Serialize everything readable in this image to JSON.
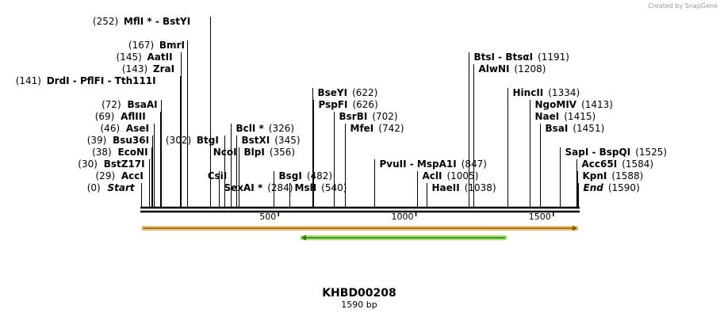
{
  "credit": "Created by SnapGene",
  "title": "KHBD00208",
  "subtitle": "1590 bp",
  "sequence_length": 1590,
  "axis_ticks": [
    {
      "label": "500",
      "value": 500
    },
    {
      "label": "1000",
      "value": 1000
    },
    {
      "label": "1500",
      "value": 1500
    }
  ],
  "colors": {
    "backbone": "#000000",
    "feature_orange_fill": "#f3c078",
    "feature_orange_line": "#8a5a00",
    "feature_green_fill": "#9be36a",
    "feature_green_line": "#2d7a00"
  },
  "features": [
    {
      "name": "orange-feature",
      "start": 1,
      "end": 1590,
      "strand": "forward"
    },
    {
      "name": "green-feature",
      "start": 580,
      "end": 1330,
      "strand": "reverse"
    }
  ],
  "sites": [
    {
      "id": "start",
      "pos": "(0)",
      "name": "Start",
      "site": 0,
      "italic": true,
      "side": "left",
      "level": 0
    },
    {
      "id": "acci",
      "pos": "(29)",
      "name": "AccI",
      "site": 29,
      "side": "left",
      "level": 1
    },
    {
      "id": "bstz17i",
      "pos": "(30)",
      "name": "BstZ17I",
      "site": 30,
      "side": "left",
      "level": 2
    },
    {
      "id": "econi",
      "pos": "(38)",
      "name": "EcoNI",
      "site": 38,
      "side": "left",
      "level": 3
    },
    {
      "id": "bsu36i",
      "pos": "(39)",
      "name": "Bsu36I",
      "site": 39,
      "side": "left",
      "level": 4
    },
    {
      "id": "asei",
      "pos": "(46)",
      "name": "AseI",
      "site": 46,
      "side": "left",
      "level": 5
    },
    {
      "id": "afliii",
      "pos": "(69)",
      "name": "AflIII",
      "site": 69,
      "side": "left",
      "level": 6
    },
    {
      "id": "bsaai",
      "pos": "(72)",
      "name": "BsaAI",
      "site": 72,
      "side": "left",
      "level": 7
    },
    {
      "id": "drdi",
      "pos": "(141)",
      "name": "DrdI - PflFI - Tth111I",
      "site": 141,
      "side": "left",
      "level": 9
    },
    {
      "id": "zrai",
      "pos": "(143)",
      "name": "ZraI",
      "site": 143,
      "side": "left",
      "level": 10
    },
    {
      "id": "aatii",
      "pos": "(145)",
      "name": "AatII",
      "site": 145,
      "side": "left",
      "level": 11
    },
    {
      "id": "bmri",
      "pos": "(167)",
      "name": "BmrI",
      "site": 167,
      "side": "left",
      "level": 12
    },
    {
      "id": "mfli",
      "pos": "(252)",
      "name": "MflI * - BstYI",
      "site": 252,
      "side": "left",
      "level": 14
    },
    {
      "id": "sexai",
      "pos": "(284)",
      "name": "SexAI *",
      "site": 284,
      "side": "right",
      "level": 0
    },
    {
      "id": "csii",
      "pos": "",
      "name": "CsiI",
      "site": 284,
      "side": "none",
      "level": 1
    },
    {
      "id": "ncoi",
      "pos": "",
      "name": "NcoI",
      "site": 302,
      "side": "none",
      "level": 3
    },
    {
      "id": "btgi",
      "pos": "(302)",
      "name": "BtgI",
      "site": 302,
      "side": "left",
      "level": 4
    },
    {
      "id": "blpi",
      "pos": "(356)",
      "name": "BlpI",
      "site": 356,
      "side": "right",
      "level": 3
    },
    {
      "id": "bstxi",
      "pos": "(345)",
      "name": "BstXI",
      "site": 345,
      "side": "right",
      "level": 4
    },
    {
      "id": "bcli",
      "pos": "(326)",
      "name": "BclI *",
      "site": 326,
      "side": "right",
      "level": 5
    },
    {
      "id": "bsgi",
      "pos": "(482)",
      "name": "BsgI",
      "site": 482,
      "side": "right",
      "level": 1
    },
    {
      "id": "msli",
      "pos": "(540)",
      "name": "MslI",
      "site": 540,
      "side": "right",
      "level": 0
    },
    {
      "id": "pspfi",
      "pos": "(626)",
      "name": "PspFI",
      "site": 626,
      "side": "right",
      "level": 7
    },
    {
      "id": "bseyi",
      "pos": "(622)",
      "name": "BseYI",
      "site": 622,
      "side": "right",
      "level": 8
    },
    {
      "id": "mfei",
      "pos": "(742)",
      "name": "MfeI",
      "site": 742,
      "side": "right",
      "level": 5
    },
    {
      "id": "bsrbi",
      "pos": "(702)",
      "name": "BsrBI",
      "site": 702,
      "side": "right",
      "level": 6
    },
    {
      "id": "pvuii",
      "pos": "(847)",
      "name": "PvuII - MspA1I",
      "site": 847,
      "side": "right",
      "level": 2
    },
    {
      "id": "acli",
      "pos": "(1005)",
      "name": "AclI",
      "site": 1005,
      "side": "right",
      "level": 1
    },
    {
      "id": "haeii",
      "pos": "(1038)",
      "name": "HaeII",
      "site": 1038,
      "side": "right",
      "level": 0
    },
    {
      "id": "btsi",
      "pos": "(1191)",
      "name": "BtsI - BtsαI",
      "site": 1191,
      "side": "right",
      "level": 11
    },
    {
      "id": "alwni",
      "pos": "(1208)",
      "name": "AlwNI",
      "site": 1208,
      "side": "right",
      "level": 10
    },
    {
      "id": "hincii",
      "pos": "(1334)",
      "name": "HincII",
      "site": 1334,
      "side": "right",
      "level": 8
    },
    {
      "id": "ngomiv",
      "pos": "(1413)",
      "name": "NgoMIV",
      "site": 1413,
      "side": "right",
      "level": 7
    },
    {
      "id": "naei",
      "pos": "(1415)",
      "name": "NaeI",
      "site": 1415,
      "side": "right",
      "level": 6
    },
    {
      "id": "bsai",
      "pos": "(1451)",
      "name": "BsaI",
      "site": 1451,
      "side": "right",
      "level": 5
    },
    {
      "id": "sapi",
      "pos": "(1525)",
      "name": "SapI - BspQI",
      "site": 1525,
      "side": "right",
      "level": 3
    },
    {
      "id": "acc65i",
      "pos": "(1584)",
      "name": "Acc65I",
      "site": 1584,
      "side": "right",
      "level": 2
    },
    {
      "id": "kpni",
      "pos": "(1588)",
      "name": "KpnI",
      "site": 1588,
      "side": "right",
      "level": 1
    },
    {
      "id": "end",
      "pos": "(1590)",
      "name": "End",
      "site": 1590,
      "italic": true,
      "side": "right",
      "level": 0
    }
  ]
}
